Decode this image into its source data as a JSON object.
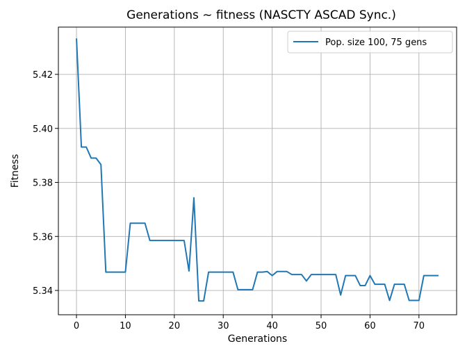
{
  "chart_data": {
    "type": "line",
    "title": "Generations ~ fitness (NASCTY ASCAD Sync.)",
    "xlabel": "Generations",
    "ylabel": "Fitness",
    "xlim": [
      -3.7,
      77.7
    ],
    "ylim": [
      5.331,
      5.4375
    ],
    "xticks": [
      0,
      10,
      20,
      30,
      40,
      50,
      60,
      70
    ],
    "yticks": [
      5.34,
      5.36,
      5.38,
      5.4,
      5.42
    ],
    "ytick_labels": [
      "5.34",
      "5.36",
      "5.38",
      "5.40",
      "5.42"
    ],
    "grid": true,
    "legend_position": "top-right",
    "series": [
      {
        "name": "Pop. size 100, 75 gens",
        "color": "#1f77b4",
        "x": [
          0,
          1,
          2,
          3,
          4,
          5,
          6,
          7,
          8,
          9,
          10,
          11,
          12,
          13,
          14,
          15,
          16,
          17,
          18,
          19,
          20,
          21,
          22,
          23,
          24,
          25,
          26,
          27,
          28,
          29,
          30,
          31,
          32,
          33,
          34,
          35,
          36,
          37,
          38,
          39,
          40,
          41,
          42,
          43,
          44,
          45,
          46,
          47,
          48,
          49,
          50,
          51,
          52,
          53,
          54,
          55,
          56,
          57,
          58,
          59,
          60,
          61,
          62,
          63,
          64,
          65,
          66,
          67,
          68,
          69,
          70,
          71,
          72,
          73,
          74
        ],
        "y": [
          5.4333,
          5.3931,
          5.3931,
          5.389,
          5.389,
          5.3866,
          5.3468,
          5.3468,
          5.3468,
          5.3468,
          5.3468,
          5.3649,
          5.3649,
          5.3649,
          5.3649,
          5.3585,
          5.3585,
          5.3585,
          5.3585,
          5.3585,
          5.3585,
          5.3585,
          5.3585,
          5.3472,
          5.3743,
          5.3361,
          5.3361,
          5.3468,
          5.3468,
          5.3468,
          5.3468,
          5.3468,
          5.3468,
          5.3403,
          5.3403,
          5.3403,
          5.3403,
          5.3468,
          5.3468,
          5.347,
          5.3455,
          5.347,
          5.347,
          5.347,
          5.3459,
          5.3459,
          5.3459,
          5.3435,
          5.3459,
          5.3459,
          5.3459,
          5.3459,
          5.3459,
          5.3459,
          5.3383,
          5.3455,
          5.3455,
          5.3455,
          5.3418,
          5.3418,
          5.3455,
          5.3423,
          5.3423,
          5.3423,
          5.3363,
          5.3423,
          5.3423,
          5.3423,
          5.3363,
          5.3363,
          5.3363,
          5.3455,
          5.3455,
          5.3455,
          5.3455
        ]
      }
    ]
  }
}
